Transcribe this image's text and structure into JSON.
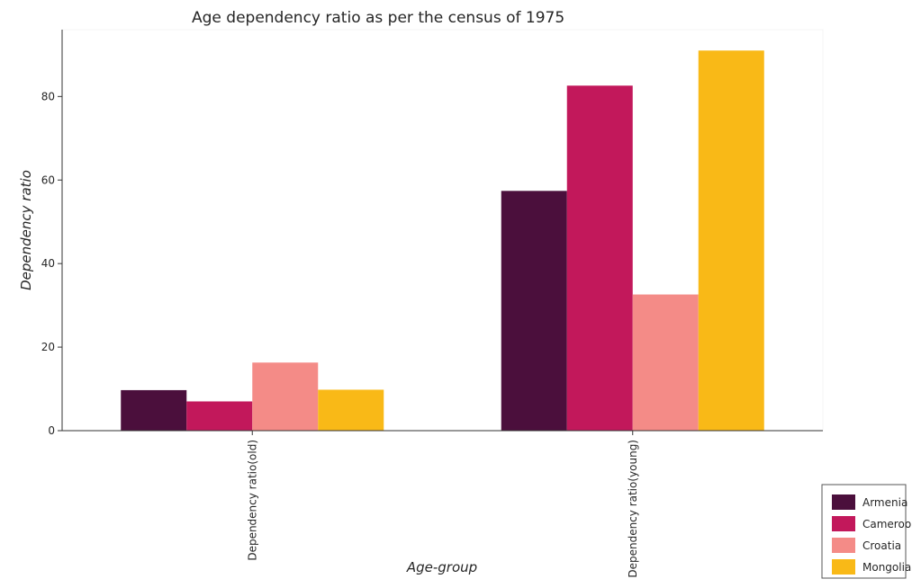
{
  "chart_data": {
    "type": "bar",
    "title": "Age dependency ratio as per the census of 1975",
    "xlabel": "Age-group",
    "ylabel": "Dependency ratio",
    "categories": [
      "Dependency ratio(old)",
      "Dependency ratio(young)"
    ],
    "series": [
      {
        "name": "Armenia",
        "color": "#4b0f3c",
        "values": [
          9.7,
          57.4
        ]
      },
      {
        "name": "Cameroon",
        "color": "#c2185b",
        "values": [
          7.0,
          82.6
        ]
      },
      {
        "name": "Croatia",
        "color": "#f48b87",
        "values": [
          16.3,
          32.6
        ]
      },
      {
        "name": "Mongolia",
        "color": "#f9b917",
        "values": [
          9.8,
          91.0
        ]
      }
    ],
    "ylim": [
      0,
      96
    ],
    "yticks": [
      0,
      20,
      40,
      60,
      80
    ],
    "grid": false,
    "legend_position": "bottom-right"
  }
}
